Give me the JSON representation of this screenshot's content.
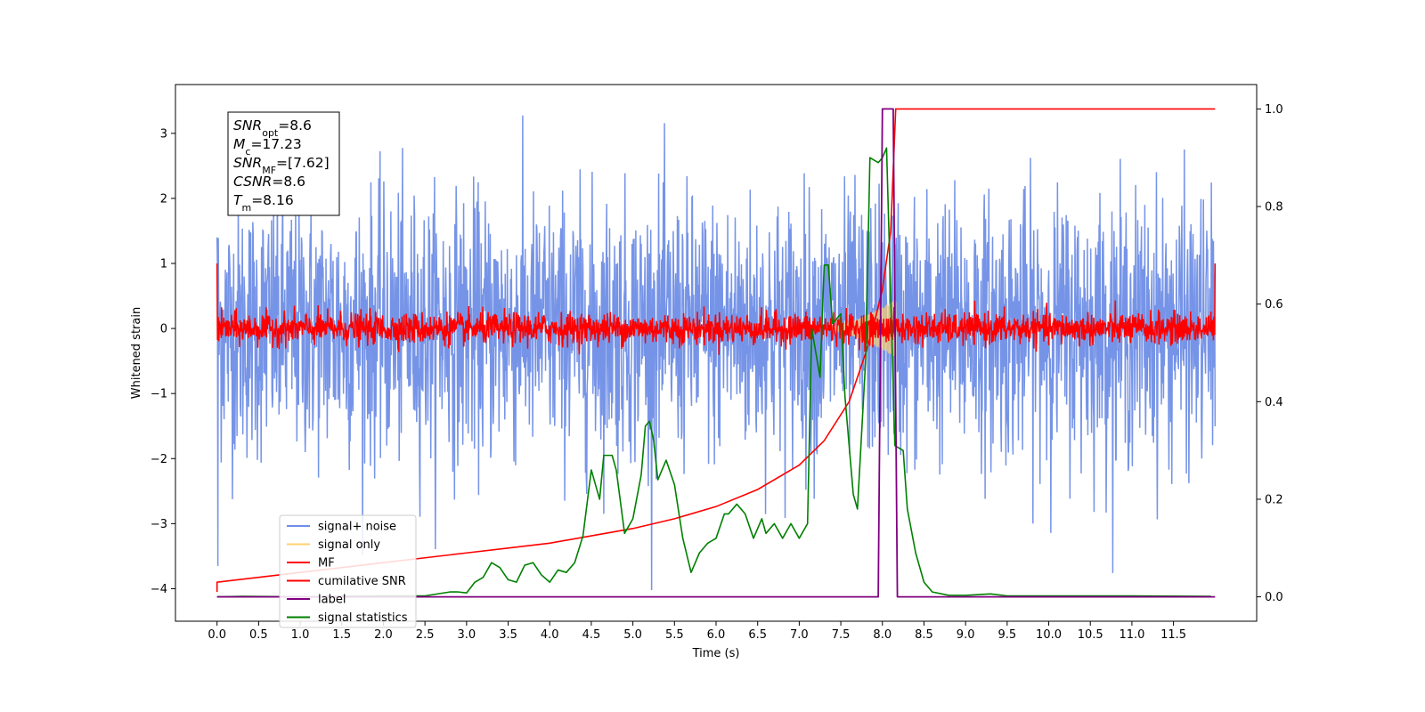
{
  "chart_data": {
    "type": "line",
    "xlabel": "Time (s)",
    "ylabel": "Whitened strain",
    "xlim": [
      -0.5,
      12.5
    ],
    "ylim": [
      -4.5,
      3.75
    ],
    "y2lim": [
      -0.05,
      1.05
    ],
    "x_ticks": [
      "0.0",
      "0.5",
      "1.0",
      "1.5",
      "2.0",
      "2.5",
      "3.0",
      "3.5",
      "4.0",
      "4.5",
      "5.0",
      "5.5",
      "6.0",
      "6.5",
      "7.0",
      "7.5",
      "8.0",
      "8.5",
      "9.0",
      "9.5",
      "10.0",
      "10.5",
      "11.0",
      "11.5"
    ],
    "y_ticks": [
      "3",
      "2",
      "1",
      "0",
      "−1",
      "−2",
      "−3",
      "−4"
    ],
    "y2_ticks": [
      "1.0",
      "0.8",
      "0.6",
      "0.4",
      "0.2",
      "0.0"
    ],
    "info_box": {
      "line1": {
        "var": "SNR",
        "sub": "opt",
        "value": "=8.6"
      },
      "line2": {
        "var": "M",
        "sub": "c",
        "value": "=17.23"
      },
      "line3": {
        "var": "SNR",
        "sub": "MF",
        "value": "=[7.62]"
      },
      "line4": {
        "var": "CSNR",
        "sub": "",
        "value": "=8.6"
      },
      "line5": {
        "var": "T",
        "sub": "m",
        "value": "=8.16"
      }
    },
    "legend": {
      "placement": "lower-left",
      "entries": [
        {
          "label": "signal+ noise",
          "color": "#6f8ee6"
        },
        {
          "label": "signal only",
          "color": "#ffd070"
        },
        {
          "label": "MF",
          "color": "#ff0000"
        },
        {
          "label": "cumilative SNR",
          "color": "#ff0000"
        },
        {
          "label": "label",
          "color": "#800080"
        },
        {
          "label": "signal statistics",
          "color": "#008000"
        }
      ]
    },
    "series": [
      {
        "name": "signal+ noise",
        "color": "#6f8ee6",
        "axis": "left",
        "t_range": [
          0,
          12
        ],
        "stddev": 1.0,
        "max": 3.4,
        "min": -4.05
      },
      {
        "name": "signal only",
        "color": "#ffd070",
        "axis": "left",
        "t_range": [
          7.3,
          8.16
        ],
        "peak_amplitude": 0.45
      },
      {
        "name": "MF",
        "color": "#ff0000",
        "axis": "left",
        "t_range": [
          0,
          12
        ],
        "stddev": 0.12,
        "edges": 1.0
      },
      {
        "name": "cumilative SNR",
        "color": "#ff0000",
        "axis": "right",
        "x": [
          0.0,
          0.5,
          1.0,
          1.5,
          2.0,
          2.5,
          3.0,
          3.5,
          4.0,
          4.5,
          5.0,
          5.5,
          6.0,
          6.5,
          7.0,
          7.3,
          7.6,
          7.8,
          7.9,
          8.0,
          8.1,
          8.16,
          12.0
        ],
        "values": [
          0.03,
          0.04,
          0.05,
          0.06,
          0.07,
          0.08,
          0.09,
          0.1,
          0.11,
          0.125,
          0.14,
          0.16,
          0.185,
          0.22,
          0.27,
          0.32,
          0.4,
          0.5,
          0.56,
          0.63,
          0.75,
          1.0,
          1.0
        ]
      },
      {
        "name": "label",
        "color": "#800080",
        "axis": "right",
        "x": [
          0.0,
          7.95,
          8.0,
          8.13,
          8.18,
          12.0
        ],
        "values": [
          0.0,
          0.0,
          1.0,
          1.0,
          0.0,
          0.0
        ]
      },
      {
        "name": "signal statistics",
        "color": "#008000",
        "axis": "right",
        "x": [
          0.0,
          0.3,
          1.0,
          2.0,
          2.5,
          2.8,
          2.9,
          3.0,
          3.1,
          3.2,
          3.3,
          3.4,
          3.5,
          3.6,
          3.7,
          3.8,
          3.9,
          4.0,
          4.1,
          4.2,
          4.3,
          4.4,
          4.5,
          4.6,
          4.65,
          4.75,
          4.8,
          4.9,
          5.0,
          5.1,
          5.15,
          5.2,
          5.25,
          5.3,
          5.4,
          5.5,
          5.6,
          5.7,
          5.8,
          5.9,
          6.0,
          6.1,
          6.15,
          6.25,
          6.35,
          6.45,
          6.55,
          6.6,
          6.7,
          6.8,
          6.9,
          7.0,
          7.1,
          7.15,
          7.25,
          7.3,
          7.35,
          7.4,
          7.5,
          7.55,
          7.65,
          7.7,
          7.8,
          7.85,
          7.95,
          8.0,
          8.05,
          8.15,
          8.25,
          8.3,
          8.4,
          8.5,
          8.6,
          8.8,
          9.0,
          9.3,
          9.5,
          10.0,
          11.0,
          11.95
        ],
        "values": [
          0.0,
          0.001,
          0.0,
          0.002,
          0.002,
          0.01,
          0.01,
          0.008,
          0.03,
          0.04,
          0.07,
          0.06,
          0.035,
          0.03,
          0.065,
          0.07,
          0.045,
          0.03,
          0.055,
          0.05,
          0.07,
          0.125,
          0.26,
          0.2,
          0.29,
          0.29,
          0.26,
          0.13,
          0.16,
          0.25,
          0.35,
          0.36,
          0.32,
          0.24,
          0.28,
          0.23,
          0.12,
          0.05,
          0.09,
          0.11,
          0.12,
          0.17,
          0.17,
          0.19,
          0.17,
          0.12,
          0.16,
          0.13,
          0.15,
          0.12,
          0.15,
          0.12,
          0.15,
          0.55,
          0.45,
          0.68,
          0.68,
          0.56,
          0.58,
          0.41,
          0.21,
          0.18,
          0.49,
          0.9,
          0.89,
          0.9,
          0.92,
          0.31,
          0.3,
          0.18,
          0.09,
          0.03,
          0.01,
          0.003,
          0.003,
          0.006,
          0.002,
          0.002,
          0.002,
          0.001
        ]
      }
    ]
  }
}
